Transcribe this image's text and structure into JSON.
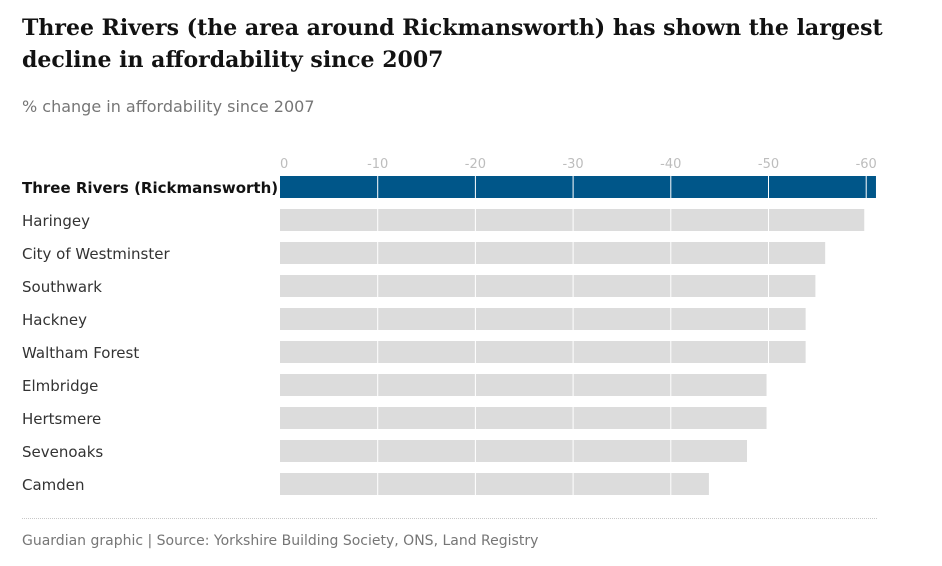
{
  "title": "Three Rivers (the area around Rickmansworth) has shown the largest decline in affordability since 2007",
  "subtitle": "% change in affordability since 2007",
  "source": "Guardian graphic | Source: Yorkshire Building Society, ONS, Land Registry",
  "colors": {
    "highlight": "#005689",
    "bar": "#dcdcdc",
    "gridline": "#ffffff",
    "tick_text": "#bdbdbd"
  },
  "chart_data": {
    "type": "bar",
    "orientation": "horizontal",
    "categories": [
      "Three Rivers (Rickmansworth)",
      "Haringey",
      "City of Westminster",
      "Southwark",
      "Hackney",
      "Waltham Forest",
      "Elmbridge",
      "Hertsmere",
      "Sevenoaks",
      "Camden"
    ],
    "values": [
      -61,
      -59.8,
      -55.8,
      -54.8,
      -53.8,
      -53.8,
      -49.8,
      -49.8,
      -47.8,
      -43.9
    ],
    "highlight_index": 0,
    "xticks": [
      0,
      -10,
      -20,
      -30,
      -40,
      -50,
      -60
    ],
    "xtick_labels": [
      "0",
      "-10",
      "-20",
      "-30",
      "-40",
      "-50",
      "-60"
    ],
    "xlim": [
      0,
      -61
    ],
    "axis_position": "top",
    "grid": true,
    "title": "Three Rivers (the area around Rickmansworth) has shown the largest decline in affordability since 2007",
    "subtitle": "% change in affordability since 2007"
  }
}
